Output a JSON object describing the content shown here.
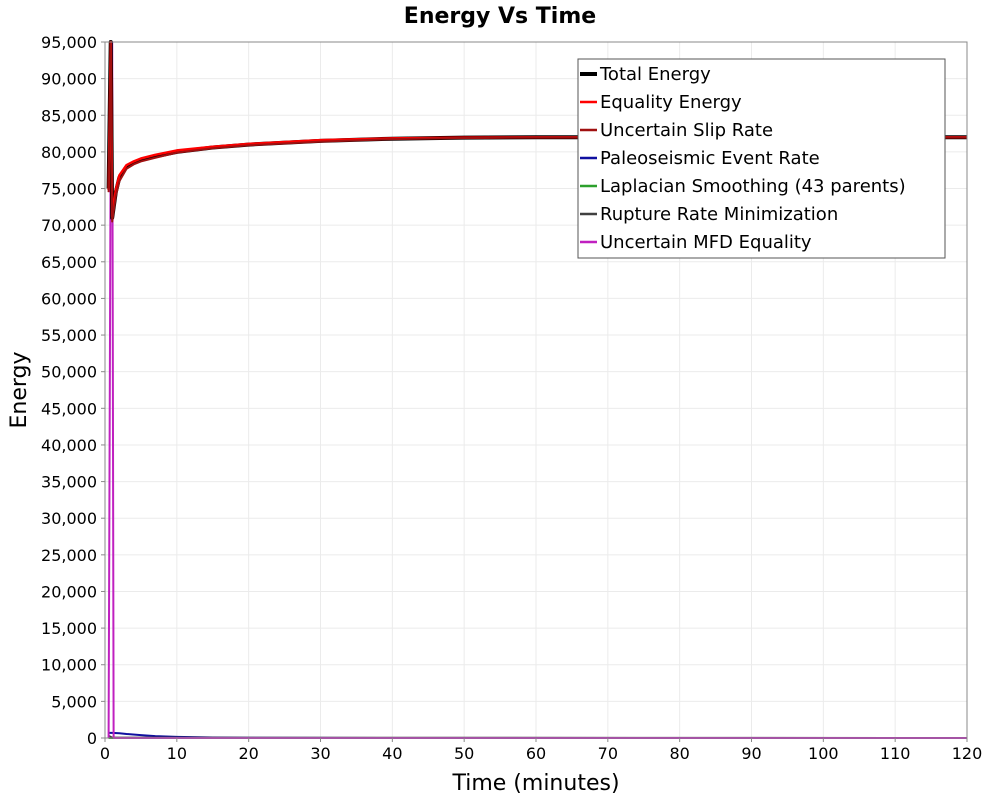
{
  "chart_data": {
    "type": "line",
    "title": "Energy Vs Time",
    "xlabel": "Time (minutes)",
    "ylabel": "Energy",
    "xlim": [
      0,
      120
    ],
    "ylim": [
      0,
      95000
    ],
    "x_ticks": [
      0,
      10,
      20,
      30,
      40,
      50,
      60,
      70,
      80,
      90,
      100,
      110,
      120
    ],
    "x_tick_labels": [
      "0",
      "10",
      "20",
      "30",
      "40",
      "50",
      "60",
      "70",
      "80",
      "90",
      "100",
      "110",
      "120"
    ],
    "y_ticks": [
      0,
      5000,
      10000,
      15000,
      20000,
      25000,
      30000,
      35000,
      40000,
      45000,
      50000,
      55000,
      60000,
      65000,
      70000,
      75000,
      80000,
      85000,
      90000,
      95000
    ],
    "y_tick_labels": [
      "0",
      "5,000",
      "10,000",
      "15,000",
      "20,000",
      "25,000",
      "30,000",
      "35,000",
      "40,000",
      "45,000",
      "50,000",
      "55,000",
      "60,000",
      "65,000",
      "70,000",
      "75,000",
      "80,000",
      "85,000",
      "90,000",
      "95,000"
    ],
    "grid": true,
    "legend_position": "top-right",
    "series": [
      {
        "name": "Total Energy",
        "color": "#000000",
        "x": [
          0.5,
          0.8,
          1.0,
          1.5,
          2,
          3,
          4,
          5,
          7,
          10,
          15,
          20,
          30,
          40,
          50,
          60,
          70,
          80,
          90,
          100,
          110,
          120
        ],
        "y": [
          75000,
          95000,
          71000,
          74500,
          76500,
          78000,
          78500,
          78900,
          79400,
          80000,
          80600,
          81000,
          81500,
          81800,
          81950,
          82000,
          82000,
          82000,
          82000,
          82000,
          82000,
          82000
        ]
      },
      {
        "name": "Equality Energy",
        "color": "#ff0000",
        "x": [
          0.5,
          0.8,
          1.0,
          1.5,
          2,
          3,
          4,
          5,
          7,
          10,
          15,
          20,
          30,
          40,
          50,
          60,
          70,
          80,
          90,
          100,
          110,
          120
        ],
        "y": [
          74800,
          95000,
          71200,
          74800,
          76800,
          78200,
          78700,
          79100,
          79600,
          80200,
          80700,
          81100,
          81600,
          81850,
          81950,
          82000,
          82000,
          82000,
          82000,
          82000,
          82000,
          82000
        ]
      },
      {
        "name": "Uncertain Slip Rate",
        "color": "#a01010",
        "x": [
          0.5,
          0.8,
          1.0,
          1.5,
          2,
          3,
          4,
          5,
          7,
          10,
          15,
          20,
          30,
          40,
          50,
          60,
          70,
          80,
          90,
          100,
          110,
          120
        ],
        "y": [
          74500,
          95000,
          70500,
          74000,
          76000,
          77700,
          78300,
          78700,
          79200,
          79900,
          80500,
          80900,
          81400,
          81750,
          81900,
          82000,
          82000,
          82000,
          82000,
          82000,
          82000,
          82000
        ]
      },
      {
        "name": "Paleoseismic Event Rate",
        "color": "#1010a0",
        "x": [
          0.5,
          1,
          2,
          3,
          5,
          7,
          10,
          15,
          20,
          30,
          60,
          120
        ],
        "y": [
          700,
          700,
          650,
          550,
          400,
          250,
          150,
          60,
          30,
          10,
          0,
          0
        ]
      },
      {
        "name": "Laplacian Smoothing (43 parents)",
        "color": "#2ca02c",
        "x": [
          0.5,
          120
        ],
        "y": [
          0,
          0
        ]
      },
      {
        "name": "Rupture Rate Minimization",
        "color": "#404040",
        "x": [
          0.5,
          1,
          120
        ],
        "y": [
          300,
          50,
          0
        ]
      },
      {
        "name": "Uncertain MFD Equality",
        "color": "#c020c0",
        "x": [
          0.5,
          0.75,
          0.85,
          1.0,
          1.2,
          2,
          120
        ],
        "y": [
          0,
          70500,
          95000,
          95000,
          0,
          0,
          0
        ]
      }
    ]
  }
}
